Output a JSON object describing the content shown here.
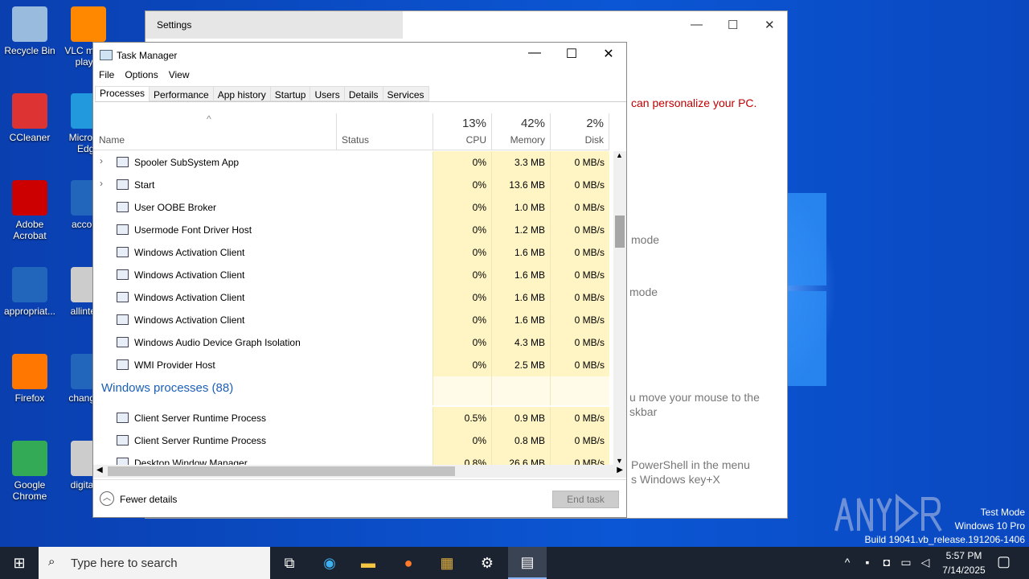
{
  "desktop": {
    "icons": [
      "Recycle Bin",
      "VLC media player",
      "CCleaner",
      "Microsoft Edge",
      "Adobe Acrobat",
      "accou...",
      "appropriat...",
      "allinter...",
      "Firefox",
      "change...",
      "Google Chrome",
      "digitalr..."
    ]
  },
  "settings": {
    "title": "Settings",
    "texts": [
      "can personalize your PC.",
      "mode",
      "mode",
      "u move your mouse to the",
      "skbar",
      "PowerShell in the menu",
      "s Windows key+X"
    ]
  },
  "taskmanager": {
    "title": "Task Manager",
    "menu": [
      "File",
      "Options",
      "View"
    ],
    "tabs": [
      "Processes",
      "Performance",
      "App history",
      "Startup",
      "Users",
      "Details",
      "Services"
    ],
    "columns": {
      "name": "Name",
      "status": "Status",
      "cpu": {
        "pct": "13%",
        "label": "CPU"
      },
      "memory": {
        "pct": "42%",
        "label": "Memory"
      },
      "disk": {
        "pct": "2%",
        "label": "Disk"
      }
    },
    "rows": [
      {
        "name": "Spooler SubSystem App",
        "cpu": "0%",
        "mem": "3.3 MB",
        "disk": "0 MB/s",
        "expand": true
      },
      {
        "name": "Start",
        "cpu": "0%",
        "mem": "13.6 MB",
        "disk": "0 MB/s",
        "expand": true
      },
      {
        "name": "User OOBE Broker",
        "cpu": "0%",
        "mem": "1.0 MB",
        "disk": "0 MB/s"
      },
      {
        "name": "Usermode Font Driver Host",
        "cpu": "0%",
        "mem": "1.2 MB",
        "disk": "0 MB/s"
      },
      {
        "name": "Windows Activation Client",
        "cpu": "0%",
        "mem": "1.6 MB",
        "disk": "0 MB/s"
      },
      {
        "name": "Windows Activation Client",
        "cpu": "0%",
        "mem": "1.6 MB",
        "disk": "0 MB/s"
      },
      {
        "name": "Windows Activation Client",
        "cpu": "0%",
        "mem": "1.6 MB",
        "disk": "0 MB/s"
      },
      {
        "name": "Windows Activation Client",
        "cpu": "0%",
        "mem": "1.6 MB",
        "disk": "0 MB/s"
      },
      {
        "name": "Windows Audio Device Graph Isolation",
        "cpu": "0%",
        "mem": "4.3 MB",
        "disk": "0 MB/s"
      },
      {
        "name": "WMI Provider Host",
        "cpu": "0%",
        "mem": "2.5 MB",
        "disk": "0 MB/s"
      }
    ],
    "group": "Windows processes (88)",
    "rows2": [
      {
        "name": "Client Server Runtime Process",
        "cpu": "0.5%",
        "mem": "0.9 MB",
        "disk": "0 MB/s"
      },
      {
        "name": "Client Server Runtime Process",
        "cpu": "0%",
        "mem": "0.8 MB",
        "disk": "0 MB/s"
      },
      {
        "name": "Desktop Window Manager",
        "cpu": "0.8%",
        "mem": "26.6 MB",
        "disk": "0 MB/s"
      }
    ],
    "fewer_details": "Fewer details",
    "end_task": "End task"
  },
  "watermark": {
    "logo": "ANY RUN",
    "lines": [
      "Test Mode",
      "Windows 10 Pro",
      "Build 19041.vb_release.191206-1406"
    ]
  },
  "taskbar": {
    "search_placeholder": "Type here to search",
    "time": "5:57 PM",
    "date": "7/14/2025"
  }
}
